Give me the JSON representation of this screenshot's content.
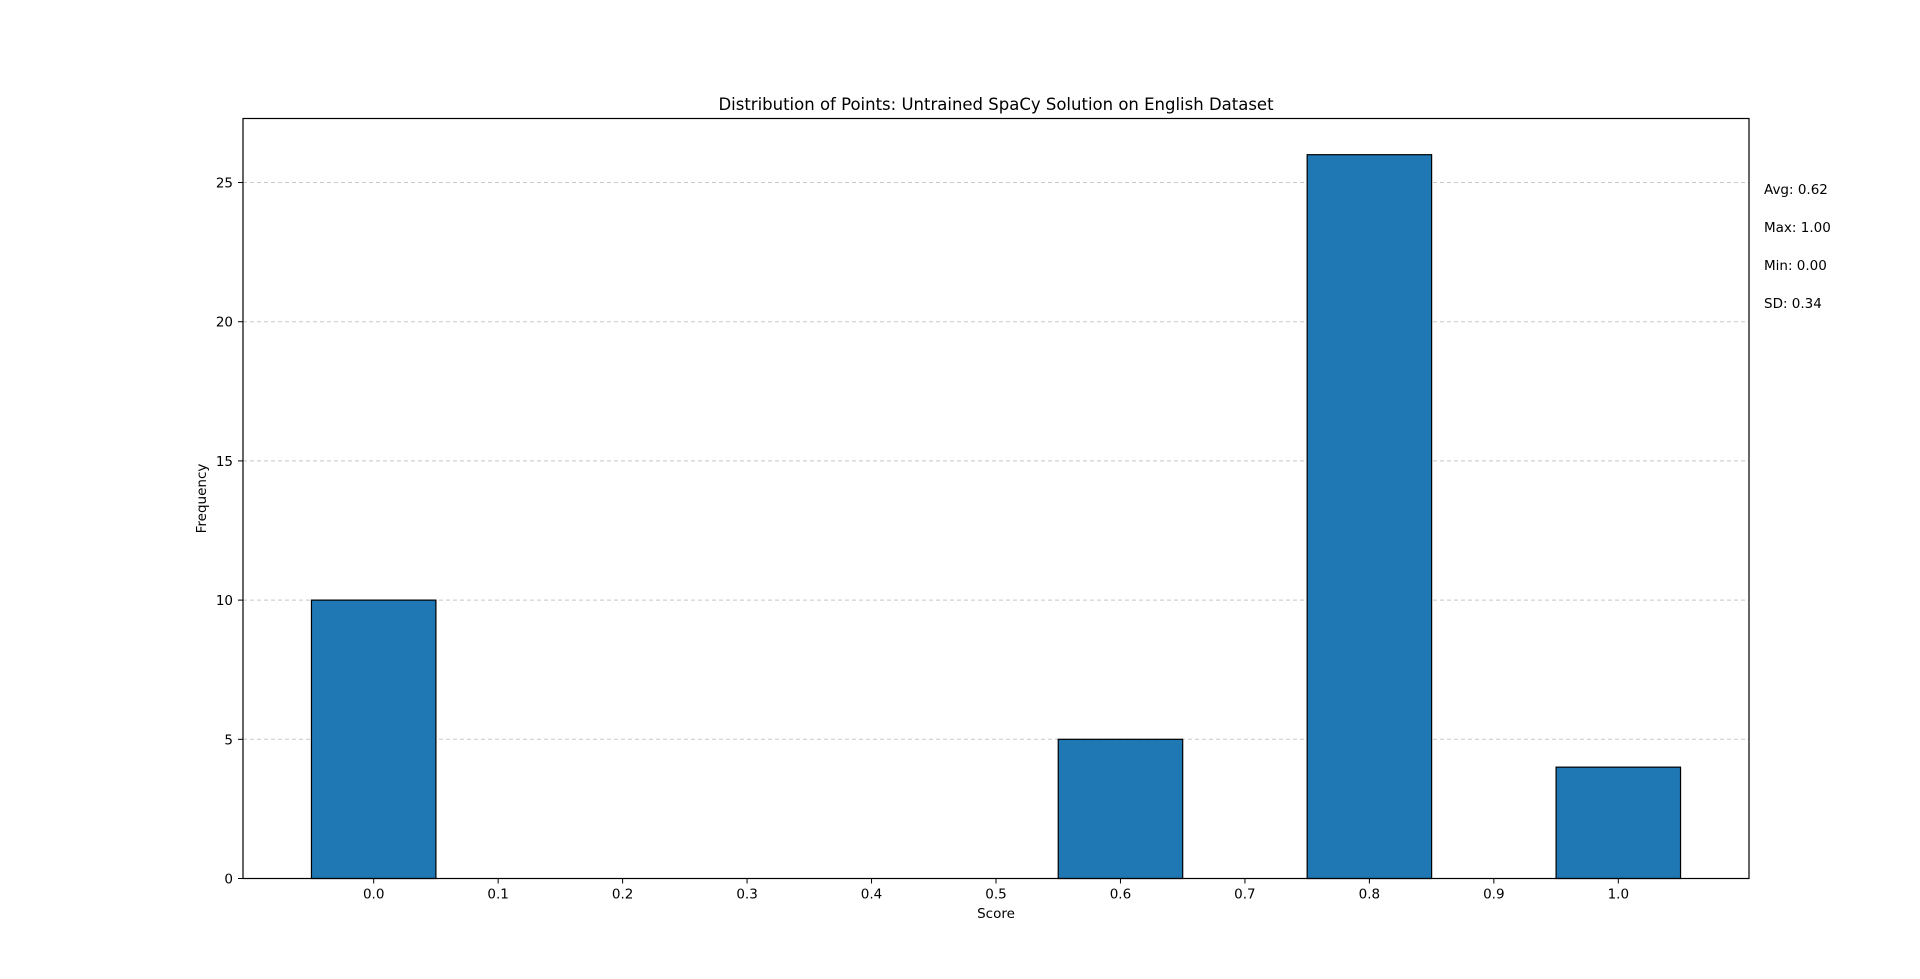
{
  "chart_data": {
    "type": "bar",
    "title": "Distribution of Points: Untrained SpaCy Solution on English Dataset",
    "xlabel": "Score",
    "ylabel": "Frequency",
    "x": [
      0.0,
      0.6,
      0.8,
      1.0
    ],
    "values": [
      10,
      5,
      26,
      4
    ],
    "bar_width": 0.1,
    "xlim": [
      -0.105,
      1.105
    ],
    "ylim": [
      0,
      27.3
    ],
    "x_ticks": [
      0.0,
      0.1,
      0.2,
      0.3,
      0.4,
      0.5,
      0.6,
      0.7,
      0.8,
      0.9,
      1.0
    ],
    "x_tick_labels": [
      "0.0",
      "0.1",
      "0.2",
      "0.3",
      "0.4",
      "0.5",
      "0.6",
      "0.7",
      "0.8",
      "0.9",
      "1.0"
    ],
    "y_ticks": [
      0,
      5,
      10,
      15,
      20,
      25
    ],
    "y_tick_labels": [
      "0",
      "5",
      "10",
      "15",
      "20",
      "25"
    ],
    "grid": "y, dashed",
    "bar_color": "#1f77b4",
    "bar_edge_color": "#000000",
    "grid_color": "#c8c8c8",
    "stats": {
      "avg": "Avg: 0.62",
      "max": "Max: 1.00",
      "min": "Min: 0.00",
      "sd": "SD: 0.34"
    }
  }
}
